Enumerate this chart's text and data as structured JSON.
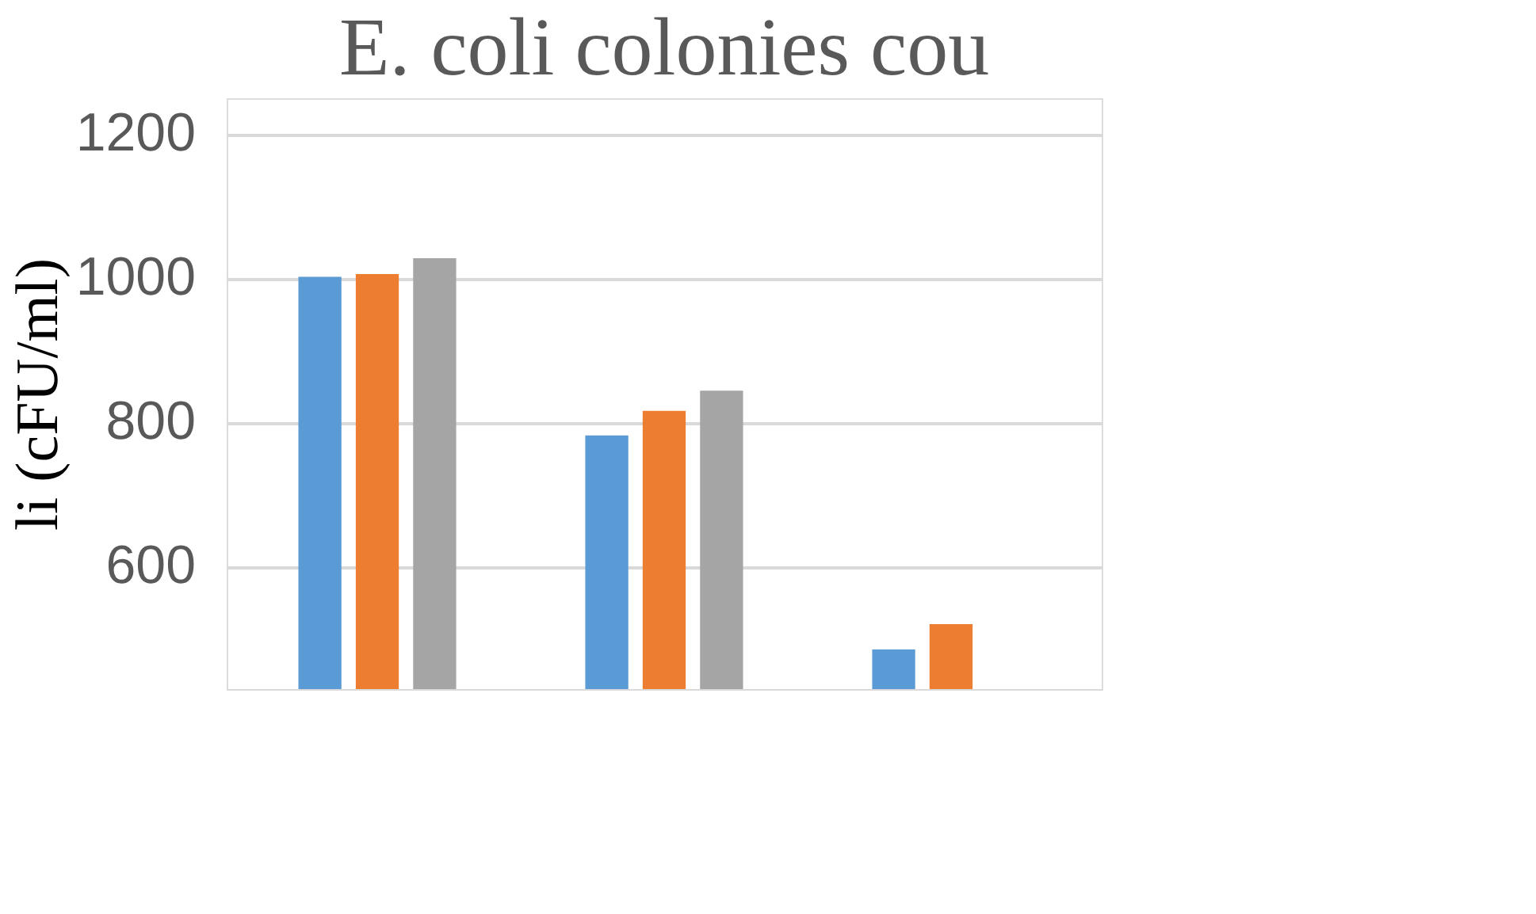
{
  "chart_data": {
    "type": "bar",
    "title": "E. coli colonies cou",
    "ylabel": "li (cFU/ml)",
    "categories": [
      null,
      null,
      null
    ],
    "series": [
      {
        "color": "#5b9bd5",
        "values": [
          1002,
          782,
          485
        ]
      },
      {
        "color": "#ed7d31",
        "values": [
          1006,
          816,
          520
        ]
      },
      {
        "color": "#a5a5a5",
        "values": [
          1028,
          844,
          null
        ]
      }
    ],
    "ylim": [
      430,
      1250
    ],
    "yticks": [
      600,
      800,
      1000,
      1200
    ],
    "grid": "y",
    "legend": false,
    "tick_labels": "y"
  }
}
